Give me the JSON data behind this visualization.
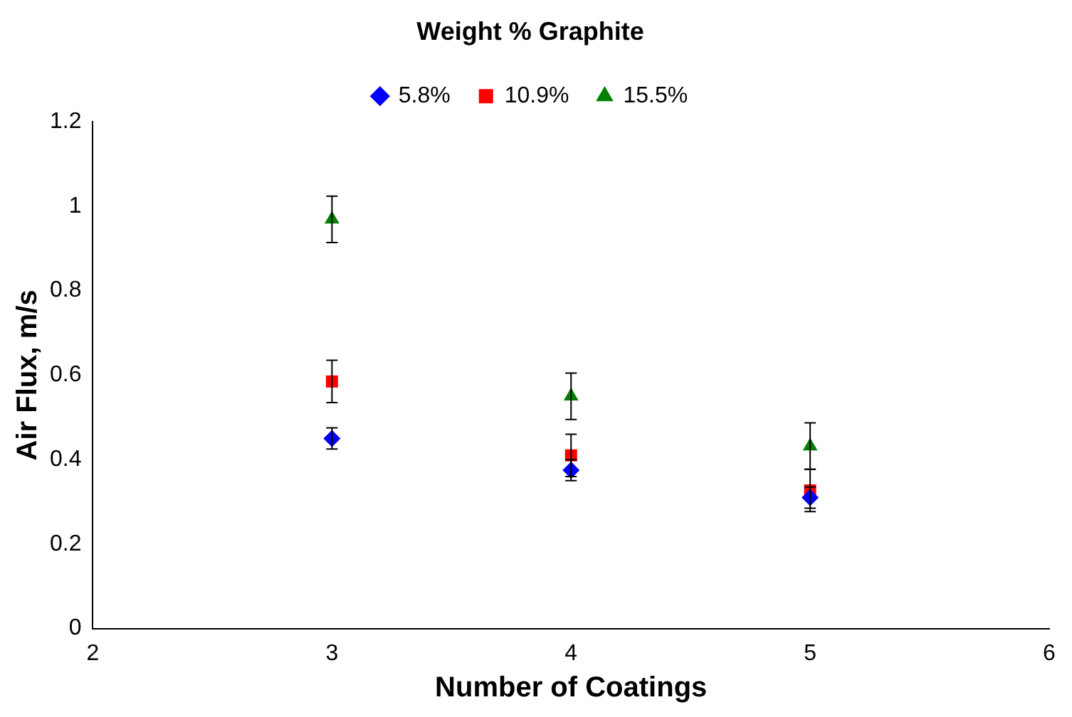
{
  "chart_data": {
    "type": "scatter",
    "title": "Weight % Graphite",
    "xlabel": "Number of Coatings",
    "ylabel": "Air Flux, m/s",
    "xlim": [
      2,
      6
    ],
    "xticks": [
      2,
      3,
      4,
      5,
      6
    ],
    "ylim": [
      0,
      1.2
    ],
    "yticks": [
      0,
      0.2,
      0.4,
      0.6,
      0.8,
      1,
      1.2
    ],
    "grid": false,
    "legend": "top",
    "series": [
      {
        "name": "5.8%",
        "color": "#0000ff",
        "marker": "diamond",
        "x": [
          3,
          4,
          5
        ],
        "values": [
          0.45,
          0.375,
          0.31
        ],
        "errors": [
          0.025,
          0.025,
          0.025
        ]
      },
      {
        "name": "10.9%",
        "color": "#ff0000",
        "marker": "square",
        "x": [
          3,
          4,
          5
        ],
        "values": [
          0.585,
          0.41,
          0.327
        ],
        "errors": [
          0.05,
          0.05,
          0.05
        ]
      },
      {
        "name": "15.5%",
        "color": "#008000",
        "marker": "triangle",
        "x": [
          3,
          4,
          5
        ],
        "values": [
          0.969,
          0.55,
          0.432
        ],
        "errors": [
          0.055,
          0.055,
          0.055
        ]
      }
    ]
  }
}
